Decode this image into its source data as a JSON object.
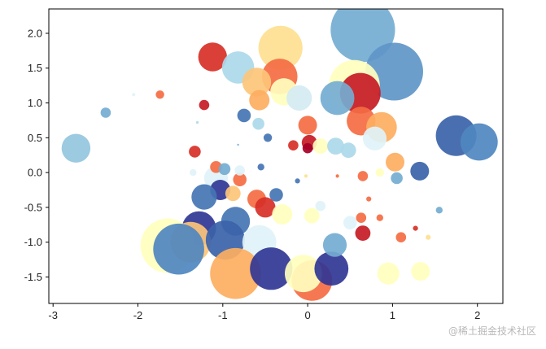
{
  "watermark": "@稀土掘金技术社区",
  "chart_data": {
    "type": "scatter",
    "title": "",
    "xlabel": "",
    "ylabel": "",
    "xlim": [
      -3.05,
      2.3
    ],
    "ylim": [
      -1.88,
      2.35
    ],
    "xticks": [
      -3,
      -2,
      -1,
      0,
      1,
      2
    ],
    "yticks": [
      -1.5,
      -1.0,
      -0.5,
      0.0,
      0.5,
      1.0,
      1.5,
      2.0
    ],
    "xtick_labels": [
      "-3",
      "-2",
      "-1",
      "0",
      "1",
      "2"
    ],
    "ytick_labels": [
      "-1.5",
      "-1.0",
      "-0.5",
      "0.0",
      "0.5",
      "1.0",
      "1.5",
      "2.0"
    ],
    "grid": false,
    "legend": "none",
    "colormap": "RdYlBu",
    "points": [
      {
        "x": 0.65,
        "y": 2.05,
        "r": 0.38,
        "color": "#74add1"
      },
      {
        "x": 1.02,
        "y": 1.45,
        "r": 0.34,
        "color": "#6096c8"
      },
      {
        "x": -0.32,
        "y": 1.79,
        "r": 0.26,
        "color": "#fee090"
      },
      {
        "x": -1.12,
        "y": 1.66,
        "r": 0.17,
        "color": "#d73027"
      },
      {
        "x": -0.82,
        "y": 1.51,
        "r": 0.19,
        "color": "#abd9e9"
      },
      {
        "x": -0.33,
        "y": 1.38,
        "r": 0.21,
        "color": "#f46d43"
      },
      {
        "x": -0.6,
        "y": 1.3,
        "r": 0.17,
        "color": "#fdc57a"
      },
      {
        "x": -0.28,
        "y": 1.16,
        "r": 0.16,
        "color": "#ffffbf"
      },
      {
        "x": -0.1,
        "y": 1.07,
        "r": 0.15,
        "color": "#d4ecf2"
      },
      {
        "x": 0.55,
        "y": 1.25,
        "r": 0.3,
        "color": "#ffffbf"
      },
      {
        "x": 0.62,
        "y": 1.14,
        "r": 0.24,
        "color": "#c51b25"
      },
      {
        "x": 0.35,
        "y": 1.07,
        "r": 0.2,
        "color": "#74add1"
      },
      {
        "x": -0.57,
        "y": 1.04,
        "r": 0.12,
        "color": "#fdae61"
      },
      {
        "x": -1.22,
        "y": 0.97,
        "r": 0.06,
        "color": "#c51b25"
      },
      {
        "x": -1.74,
        "y": 1.12,
        "r": 0.05,
        "color": "#f46d43"
      },
      {
        "x": -2.38,
        "y": 0.86,
        "r": 0.06,
        "color": "#74add1"
      },
      {
        "x": -2.05,
        "y": 1.12,
        "r": 0.02,
        "color": "#e0f3f8"
      },
      {
        "x": -0.75,
        "y": 0.82,
        "r": 0.08,
        "color": "#4575b4"
      },
      {
        "x": -0.58,
        "y": 0.7,
        "r": 0.07,
        "color": "#abd9e9"
      },
      {
        "x": 0.0,
        "y": 0.68,
        "r": 0.11,
        "color": "#f46d43"
      },
      {
        "x": 0.63,
        "y": 0.74,
        "r": 0.17,
        "color": "#f46d43"
      },
      {
        "x": 0.87,
        "y": 0.65,
        "r": 0.18,
        "color": "#fdae61"
      },
      {
        "x": 0.79,
        "y": 0.49,
        "r": 0.14,
        "color": "#e0f3f8"
      },
      {
        "x": 1.75,
        "y": 0.53,
        "r": 0.24,
        "color": "#3b63a9"
      },
      {
        "x": 2.02,
        "y": 0.44,
        "r": 0.22,
        "color": "#4f87c0"
      },
      {
        "x": -2.73,
        "y": 0.35,
        "r": 0.17,
        "color": "#92c5de"
      },
      {
        "x": -1.33,
        "y": 0.3,
        "r": 0.07,
        "color": "#d73027"
      },
      {
        "x": -0.47,
        "y": 0.5,
        "r": 0.05,
        "color": "#4575b4"
      },
      {
        "x": 0.02,
        "y": 0.43,
        "r": 0.09,
        "color": "#c51b25"
      },
      {
        "x": 0.15,
        "y": 0.38,
        "r": 0.09,
        "color": "#ffffbf"
      },
      {
        "x": 0.33,
        "y": 0.38,
        "r": 0.1,
        "color": "#abd9e9"
      },
      {
        "x": 0.48,
        "y": 0.32,
        "r": 0.09,
        "color": "#abd9e9"
      },
      {
        "x": 1.03,
        "y": 0.15,
        "r": 0.11,
        "color": "#fdae61"
      },
      {
        "x": 1.32,
        "y": 0.02,
        "r": 0.11,
        "color": "#3b63a9"
      },
      {
        "x": -1.08,
        "y": -0.08,
        "r": 0.14,
        "color": "#e0f3f8"
      },
      {
        "x": -1.03,
        "y": -0.25,
        "r": 0.12,
        "color": "#313695"
      },
      {
        "x": -1.22,
        "y": -0.35,
        "r": 0.15,
        "color": "#4575b4"
      },
      {
        "x": -0.88,
        "y": -0.3,
        "r": 0.09,
        "color": "#fdc57a"
      },
      {
        "x": -0.8,
        "y": -0.1,
        "r": 0.08,
        "color": "#f46d43"
      },
      {
        "x": -0.6,
        "y": -0.38,
        "r": 0.11,
        "color": "#f46d43"
      },
      {
        "x": -0.5,
        "y": -0.5,
        "r": 0.12,
        "color": "#d73027"
      },
      {
        "x": -0.37,
        "y": -0.32,
        "r": 0.08,
        "color": "#4575b4"
      },
      {
        "x": -0.3,
        "y": -0.6,
        "r": 0.12,
        "color": "#ffffbf"
      },
      {
        "x": 0.05,
        "y": -0.62,
        "r": 0.09,
        "color": "#ffffbf"
      },
      {
        "x": 0.5,
        "y": -0.72,
        "r": 0.08,
        "color": "#e0f3f8"
      },
      {
        "x": 0.63,
        "y": -0.65,
        "r": 0.06,
        "color": "#f46d43"
      },
      {
        "x": 0.65,
        "y": -0.87,
        "r": 0.09,
        "color": "#c51b25"
      },
      {
        "x": -1.28,
        "y": -0.8,
        "r": 0.2,
        "color": "#313695"
      },
      {
        "x": -0.85,
        "y": -0.7,
        "r": 0.17,
        "color": "#4575b4"
      },
      {
        "x": -1.65,
        "y": -1.05,
        "r": 0.32,
        "color": "#ffffbf"
      },
      {
        "x": -1.38,
        "y": -1.0,
        "r": 0.24,
        "color": "#fdc57a"
      },
      {
        "x": -1.52,
        "y": -1.1,
        "r": 0.3,
        "color": "#4f87c0"
      },
      {
        "x": -0.97,
        "y": -0.97,
        "r": 0.23,
        "color": "#3b63a9"
      },
      {
        "x": -0.57,
        "y": -1.0,
        "r": 0.2,
        "color": "#e0f3f8"
      },
      {
        "x": -0.85,
        "y": -1.45,
        "r": 0.3,
        "color": "#fdae61"
      },
      {
        "x": -0.43,
        "y": -1.38,
        "r": 0.25,
        "color": "#313695"
      },
      {
        "x": 0.05,
        "y": -1.55,
        "r": 0.24,
        "color": "#f46d43"
      },
      {
        "x": -0.05,
        "y": -1.45,
        "r": 0.22,
        "color": "#ffffbf"
      },
      {
        "x": 0.28,
        "y": -1.38,
        "r": 0.2,
        "color": "#313695"
      },
      {
        "x": 0.32,
        "y": -1.04,
        "r": 0.14,
        "color": "#74add1"
      },
      {
        "x": 0.95,
        "y": -1.45,
        "r": 0.13,
        "color": "#ffffbf"
      },
      {
        "x": 1.33,
        "y": -1.42,
        "r": 0.11,
        "color": "#ffffbf"
      },
      {
        "x": 1.1,
        "y": -0.93,
        "r": 0.06,
        "color": "#f46d43"
      },
      {
        "x": 1.55,
        "y": -0.54,
        "r": 0.04,
        "color": "#74add1"
      },
      {
        "x": 1.42,
        "y": -0.93,
        "r": 0.03,
        "color": "#fee090"
      },
      {
        "x": 1.27,
        "y": -0.8,
        "r": 0.03,
        "color": "#d73027"
      },
      {
        "x": 0.85,
        "y": -0.65,
        "r": 0.04,
        "color": "#f46d43"
      },
      {
        "x": 1.05,
        "y": -0.08,
        "r": 0.07,
        "color": "#74add1"
      },
      {
        "x": 0.65,
        "y": -0.05,
        "r": 0.06,
        "color": "#f46d43"
      },
      {
        "x": 0.85,
        "y": 0.0,
        "r": 0.05,
        "color": "#ffffbf"
      },
      {
        "x": 0.0,
        "y": 0.35,
        "r": 0.06,
        "color": "#a50026"
      },
      {
        "x": -0.17,
        "y": 0.39,
        "r": 0.06,
        "color": "#d73027"
      },
      {
        "x": -0.55,
        "y": 0.08,
        "r": 0.04,
        "color": "#4575b4"
      },
      {
        "x": -1.08,
        "y": 0.08,
        "r": 0.07,
        "color": "#f46d43"
      },
      {
        "x": -0.98,
        "y": 0.05,
        "r": 0.07,
        "color": "#74add1"
      },
      {
        "x": -1.35,
        "y": 0.0,
        "r": 0.04,
        "color": "#e0f3f8"
      },
      {
        "x": -0.8,
        "y": 0.03,
        "r": 0.06,
        "color": "#e0f3f8"
      },
      {
        "x": -0.12,
        "y": -0.12,
        "r": 0.03,
        "color": "#4575b4"
      },
      {
        "x": -0.02,
        "y": -0.05,
        "r": 0.02,
        "color": "#fee090"
      },
      {
        "x": 0.35,
        "y": -0.05,
        "r": 0.02,
        "color": "#f46d43"
      },
      {
        "x": 0.72,
        "y": -0.38,
        "r": 0.03,
        "color": "#f46d43"
      },
      {
        "x": 0.15,
        "y": -0.48,
        "r": 0.06,
        "color": "#e0f3f8"
      },
      {
        "x": -0.82,
        "y": 0.4,
        "r": 0.01,
        "color": "#74add1"
      },
      {
        "x": -1.3,
        "y": 0.72,
        "r": 0.015,
        "color": "#abd9e9"
      }
    ]
  }
}
